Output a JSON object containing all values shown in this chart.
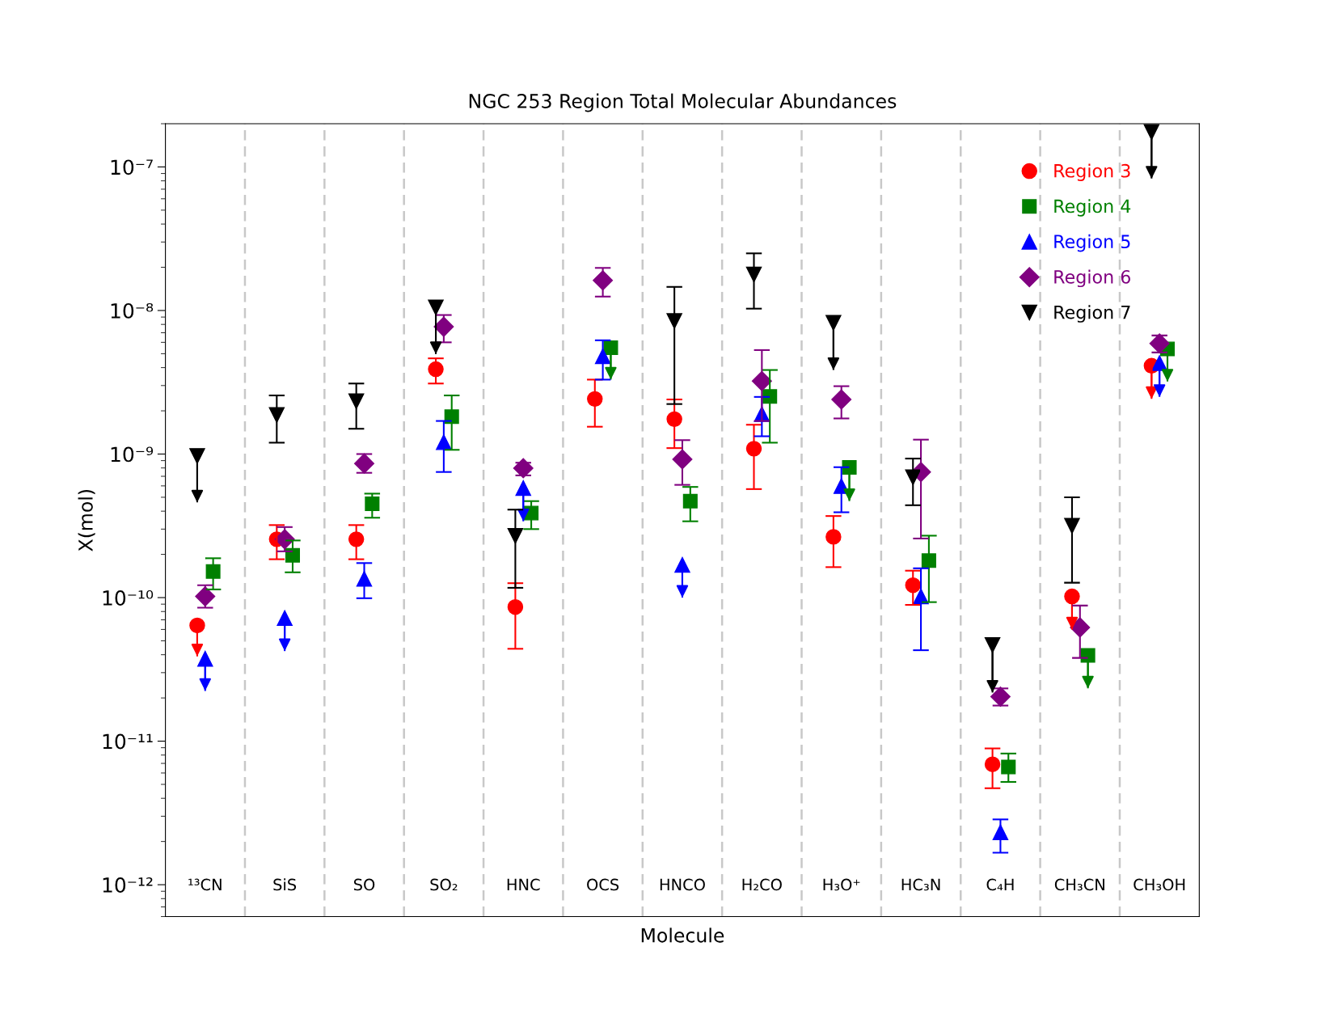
{
  "chart_data": {
    "type": "scatter",
    "title": "NGC 253 Region Total Molecular Abundances",
    "xlabel": "Molecule",
    "ylabel": "X(mol)",
    "categories": [
      "¹³CN",
      "SiS",
      "SO",
      "SO₂",
      "HNC",
      "OCS",
      "HNCO",
      "H₂CO",
      "H₃O⁺",
      "HC₃N",
      "C₄H",
      "CH₃CN",
      "CH₃OH"
    ],
    "log": "y",
    "ylim": [
      6e-13,
      2e-07
    ],
    "yticks": [
      {
        "value": 1e-12,
        "label": "10⁻¹²"
      },
      {
        "value": 1e-11,
        "label": "10⁻¹¹"
      },
      {
        "value": 1e-10,
        "label": "10⁻¹⁰"
      },
      {
        "value": 1e-09,
        "label": "10⁻⁹"
      },
      {
        "value": 1e-08,
        "label": "10⁻⁸"
      },
      {
        "value": 1e-07,
        "label": "10⁻⁷"
      }
    ],
    "grid": "x",
    "legend": "top right",
    "series": [
      {
        "name": "Region 3",
        "color": "#ff0000",
        "marker": "circle",
        "values": [
          6.4e-11,
          2.55e-10,
          2.55e-10,
          3.9e-09,
          8.6e-11,
          2.42e-09,
          1.75e-09,
          1.09e-09,
          2.65e-10,
          1.22e-10,
          6.9e-12,
          1.02e-10,
          4.12e-09
        ],
        "errors": [
          [
            3.9e-11,
            6.4e-11
          ],
          [
            1.85e-10,
            3.2e-10
          ],
          [
            1.85e-10,
            3.2e-10
          ],
          [
            3.1e-09,
            4.64e-09
          ],
          [
            4.4e-11,
            1.26e-10
          ],
          [
            1.55e-09,
            3.3e-09
          ],
          [
            1.1e-09,
            2.4e-09
          ],
          [
            5.7e-10,
            1.6e-09
          ],
          [
            1.63e-10,
            3.7e-10
          ],
          [
            8.9e-11,
            1.54e-10
          ],
          [
            4.7e-12,
            8.9e-12
          ],
          [
            6e-11,
            1.02e-10
          ],
          [
            2.42e-09,
            4.12e-09
          ]
        ]
      },
      {
        "name": "Region 4",
        "color": "#008000",
        "marker": "square",
        "values": [
          1.52e-10,
          1.97e-10,
          4.5e-10,
          1.82e-09,
          3.88e-10,
          5.5e-09,
          4.7e-10,
          2.52e-09,
          8.07e-10,
          1.81e-10,
          6.6e-12,
          3.96e-11,
          5.4e-09
        ],
        "errors": [
          [
            1.14e-10,
            1.88e-10
          ],
          [
            1.5e-10,
            2.5e-10
          ],
          [
            3.6e-10,
            5.3e-10
          ],
          [
            1.07e-09,
            2.56e-09
          ],
          [
            3e-10,
            4.7e-10
          ],
          [
            3.3e-09,
            5.5e-09
          ],
          [
            3.4e-10,
            5.9e-10
          ],
          [
            1.2e-09,
            3.85e-09
          ],
          [
            4.7e-10,
            8.07e-10
          ],
          [
            9.3e-11,
            2.7e-10
          ],
          [
            5.2e-12,
            8.2e-12
          ],
          [
            2.33e-11,
            3.96e-11
          ],
          [
            3.2e-09,
            5.4e-09
          ]
        ]
      },
      {
        "name": "Region 5",
        "color": "#0000ff",
        "marker": "triangle",
        "values": [
          3.75e-11,
          7.2e-11,
          1.35e-10,
          1.21e-09,
          5.8e-10,
          4.8e-09,
          1.69e-10,
          1.9e-09,
          5.98e-10,
          1.02e-10,
          2.32e-12,
          null,
          4.3e-09
        ],
        "errors": [
          [
            2.24e-11,
            3.75e-11
          ],
          [
            4.24e-11,
            7.2e-11
          ],
          [
            9.9e-11,
            1.74e-10
          ],
          [
            7.5e-10,
            1.7e-09
          ],
          [
            3.4e-10,
            5.8e-10
          ],
          [
            3.3e-09,
            6.2e-09
          ],
          [
            1e-10,
            1.69e-10
          ],
          [
            1.33e-09,
            2.5e-09
          ],
          [
            3.93e-10,
            8.1e-10
          ],
          [
            4.3e-11,
            1.6e-10
          ],
          [
            1.67e-12,
            2.85e-12
          ],
          null,
          [
            2.5e-09,
            4.3e-09
          ]
        ]
      },
      {
        "name": "Region 6",
        "color": "#800080",
        "marker": "diamond",
        "values": [
          1.02e-10,
          2.55e-10,
          8.6e-10,
          7.7e-09,
          7.96e-10,
          1.62e-08,
          9.2e-10,
          3.22e-09,
          2.4e-09,
          7.5e-10,
          2.04e-11,
          6.2e-11,
          5.9e-09
        ],
        "errors": [
          [
            8.5e-11,
            1.22e-10
          ],
          [
            2.1e-10,
            3.1e-10
          ],
          [
            7.4e-10,
            1e-09
          ],
          [
            6e-09,
            9.3e-09
          ],
          [
            7.1e-10,
            8.7e-10
          ],
          [
            1.25e-08,
            1.98e-08
          ],
          [
            6.1e-10,
            1.25e-09
          ],
          [
            1.7e-09,
            5.3e-09
          ],
          [
            1.77e-09,
            2.97e-09
          ],
          [
            2.58e-10,
            1.26e-09
          ],
          [
            1.77e-11,
            2.33e-11
          ],
          [
            3.8e-11,
            8.8e-11
          ],
          [
            5.1e-09,
            6.7e-09
          ]
        ]
      },
      {
        "name": "Region 7",
        "color": "#000000",
        "marker": "triangle_down",
        "values": [
          9.7e-10,
          1.87e-09,
          2.33e-09,
          1.05e-08,
          2.69e-10,
          null,
          8.45e-09,
          1.78e-08,
          8.2e-09,
          6.9e-10,
          4.67e-11,
          3.16e-10,
          1.75e-07
        ],
        "errors": [
          [
            4.6e-10,
            9.7e-10
          ],
          [
            1.2e-09,
            2.56e-09
          ],
          [
            1.5e-09,
            3.1e-09
          ],
          [
            4.97e-09,
            1.05e-08
          ],
          [
            1.17e-10,
            4.1e-10
          ],
          null,
          [
            2.23e-09,
            1.46e-08
          ],
          [
            1.03e-08,
            2.5e-08
          ],
          [
            3.85e-09,
            8.2e-09
          ],
          [
            4.4e-10,
            9.3e-10
          ],
          [
            2.18e-11,
            4.67e-11
          ],
          [
            1.27e-10,
            5e-10
          ],
          [
            8.3e-08,
            1.75e-07
          ]
        ]
      }
    ]
  }
}
